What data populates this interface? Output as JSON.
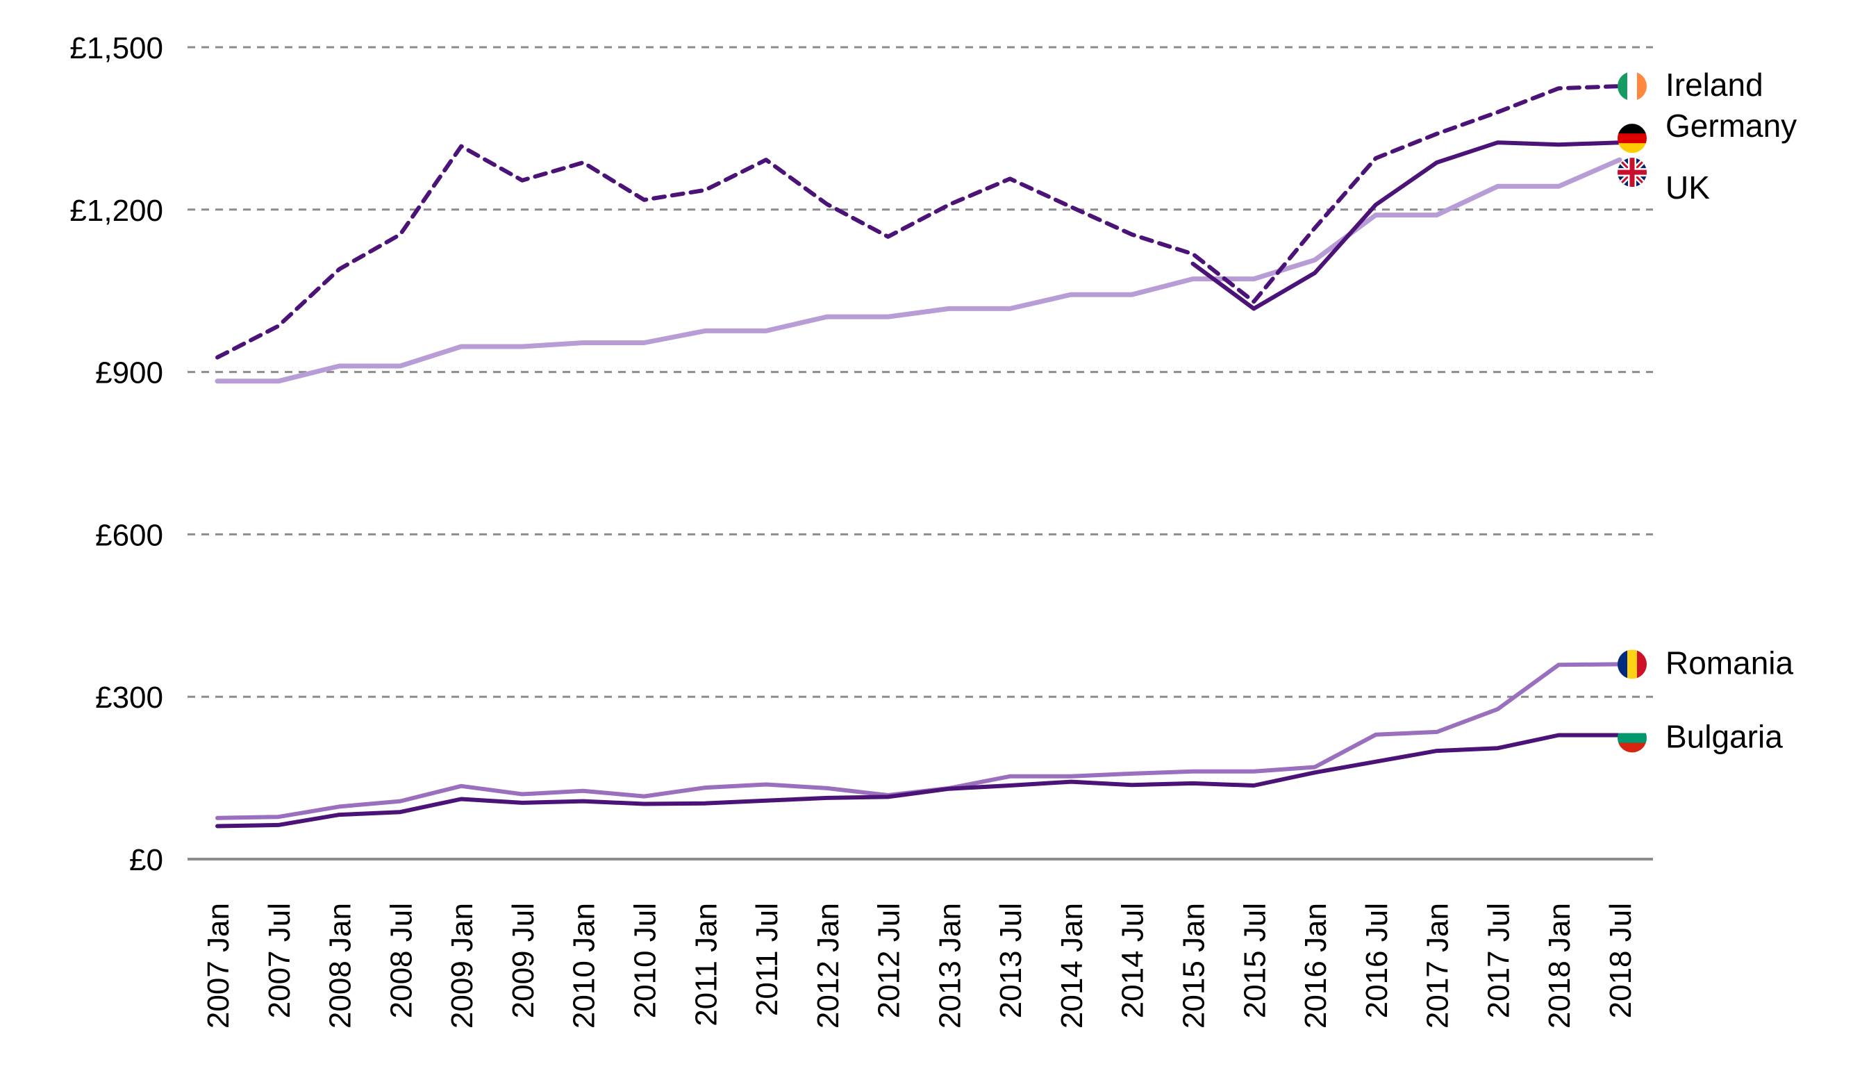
{
  "chart_data": {
    "type": "line",
    "title": "",
    "xlabel": "",
    "ylabel": "",
    "ylim": [
      0,
      1500
    ],
    "y_ticks": [
      {
        "value": 0,
        "label": "£0"
      },
      {
        "value": 300,
        "label": "£300"
      },
      {
        "value": 600,
        "label": "£600"
      },
      {
        "value": 900,
        "label": "£900"
      },
      {
        "value": 1200,
        "label": "£1,200"
      },
      {
        "value": 1500,
        "label": "£1,500"
      }
    ],
    "grid": "horizontal dashed",
    "legend": "direct labels at right end of lines",
    "categories": [
      "2007 Jan",
      "2007 Jul",
      "2008 Jan",
      "2008 Jul",
      "2009 Jan",
      "2009 Jul",
      "2010 Jan",
      "2010 Jul",
      "2011 Jan",
      "2011 Jul",
      "2012 Jan",
      "2012 Jul",
      "2013 Jan",
      "2013 Jul",
      "2014 Jan",
      "2014 Jul",
      "2015 Jan",
      "2015 Jul",
      "2016 Jan",
      "2016 Jul",
      "2017 Jan",
      "2017 Jul",
      "2018 Jan",
      "2018 Jul"
    ],
    "series": [
      {
        "name": "Ireland",
        "label": "Ireland",
        "color": "#4b1377",
        "dashed": true,
        "opacity": 1,
        "flag": "ireland-flag",
        "start_index": 0,
        "values": [
          927,
          985,
          1090,
          1154,
          1317,
          1254,
          1287,
          1218,
          1236,
          1292,
          1210,
          1150,
          1209,
          1257,
          1205,
          1154,
          1118,
          1030,
          1166,
          1295,
          1340,
          1380,
          1424,
          1428
        ]
      },
      {
        "name": "Germany",
        "label": "Germany",
        "color": "#4b1377",
        "dashed": false,
        "opacity": 1,
        "flag": "germany-flag",
        "start_index": 16,
        "values": [
          null,
          null,
          null,
          null,
          null,
          null,
          null,
          null,
          null,
          null,
          null,
          null,
          null,
          null,
          null,
          null,
          1100,
          1017,
          1083,
          1209,
          1287,
          1324,
          1320,
          1324
        ]
      },
      {
        "name": "UK",
        "label": "UK",
        "color": "#b79cd6",
        "dashed": false,
        "opacity": 1,
        "flag": "uk-flag",
        "start_index": 0,
        "values": [
          883,
          883,
          911,
          911,
          947,
          947,
          954,
          954,
          976,
          976,
          1002,
          1002,
          1017,
          1017,
          1043,
          1043,
          1072,
          1072,
          1107,
          1190,
          1190,
          1243,
          1243,
          1292
        ]
      },
      {
        "name": "Romania",
        "label": "Romania",
        "color": "#9a6fbd",
        "dashed": false,
        "opacity": 1,
        "flag": "romania-flag",
        "start_index": 0,
        "values": [
          76,
          78,
          97,
          107,
          135,
          120,
          126,
          116,
          132,
          138,
          131,
          118,
          131,
          153,
          153,
          158,
          162,
          162,
          170,
          230,
          235,
          277,
          359,
          360
        ]
      },
      {
        "name": "Bulgaria",
        "label": "Bulgaria",
        "color": "#4b1377",
        "dashed": false,
        "opacity": 1,
        "flag": "bulgaria-flag",
        "start_index": 0,
        "values": [
          61,
          63,
          82,
          87,
          111,
          104,
          107,
          102,
          103,
          108,
          113,
          115,
          130,
          136,
          143,
          137,
          140,
          136,
          160,
          180,
          200,
          205,
          229,
          229
        ]
      }
    ]
  }
}
